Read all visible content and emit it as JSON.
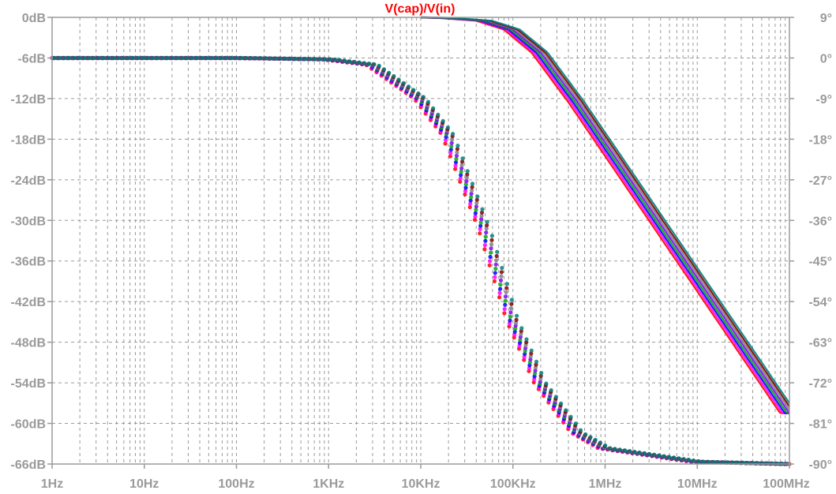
{
  "chart_data": {
    "type": "line",
    "title": "V(cap)/V(in)",
    "title_color": "#ff0000",
    "x_scale": "log",
    "xlim": [
      1,
      100000000
    ],
    "ylim": [
      -66,
      0
    ],
    "y2lim": [
      -90,
      9
    ],
    "x_ticks": [
      "1Hz",
      "10Hz",
      "100Hz",
      "1KHz",
      "10KHz",
      "100KHz",
      "1MHz",
      "10MHz",
      "100MHz"
    ],
    "y_ticks_left": [
      "0dB",
      "-6dB",
      "-12dB",
      "-18dB",
      "-24dB",
      "-30dB",
      "-36dB",
      "-42dB",
      "-48dB",
      "-54dB",
      "-60dB",
      "-66dB"
    ],
    "y_ticks_right": [
      "9°",
      "0°",
      "-9°",
      "-18°",
      "-27°",
      "-36°",
      "-45°",
      "-54°",
      "-63°",
      "-72°",
      "-81°",
      "-90°"
    ],
    "grid": true,
    "grid_color": "#9a9a9a",
    "label_color": "#9a9a9a",
    "series_colors": [
      "#ff0000",
      "#ff00ff",
      "#0000ff",
      "#00aa00",
      "#8000ff",
      "#808080",
      "#800000",
      "#008080"
    ],
    "magnitude_series": {
      "style": "solid",
      "x": [
        10000,
        20000,
        50000,
        100000,
        200000,
        500000,
        1000000,
        10000000,
        100000000
      ],
      "y": [
        0,
        -0.1,
        -0.5,
        -1.8,
        -5.2,
        -12.5,
        -18.5,
        -38.5,
        -58.5
      ]
    },
    "phase_series": {
      "style": "dotted",
      "x": [
        1,
        10,
        100,
        1000,
        3000,
        10000,
        20000,
        50000,
        100000,
        200000,
        500000,
        1000000,
        10000000,
        100000000
      ],
      "y": [
        0,
        0,
        0,
        -0.3,
        -1.5,
        -9,
        -17,
        -38,
        -58,
        -72,
        -83,
        -86.5,
        -89.5,
        -90
      ]
    }
  }
}
